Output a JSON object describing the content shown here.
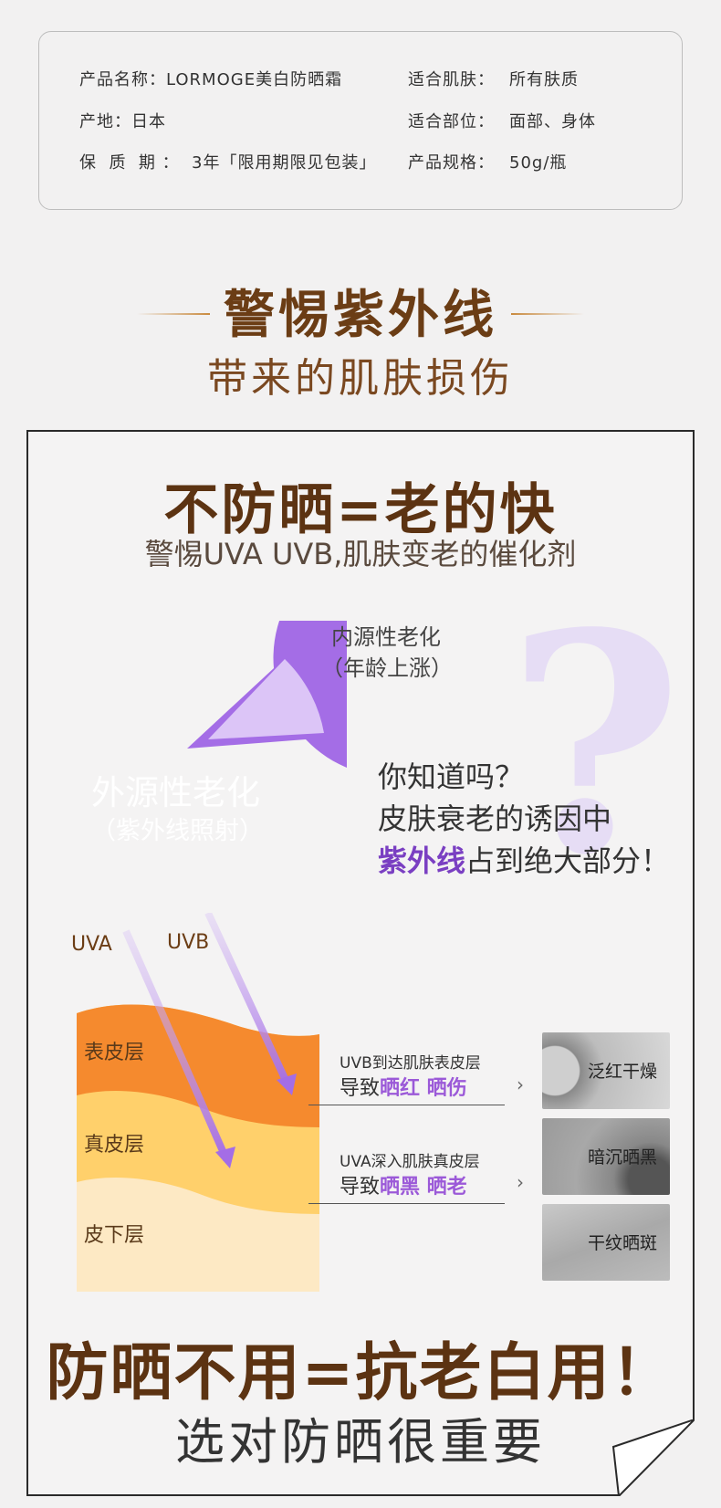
{
  "specs": {
    "name": "产品名称：LORMOGE美白防晒霜",
    "origin": "产地：日本",
    "shelf_life": "保  质  期 ：  3年「限用期限见包装」",
    "skin_label": "适合肌肤：",
    "skin_value": "所有肤质",
    "area_label": "适合部位：",
    "area_value": "面部、身体",
    "size_label": "产品规格：",
    "size_value": "50g/瓶"
  },
  "section": {
    "title": "警惕紫外线",
    "subtitle": "带来的肌肤损伤"
  },
  "card": {
    "headline": "不防晒=老的快",
    "subheadline": "警惕UVA UVB,肌肤变老的催化剂",
    "pie": {
      "small_label_1": "内源性老化",
      "small_label_2": "（年龄上涨）",
      "big_label_1": "外源性老化",
      "big_label_2": "（紫外线照射）"
    },
    "question_mark": "?",
    "did_you_know": {
      "line1": "你知道吗？",
      "line2": "皮肤衰老的诱因中",
      "line3_highlight": "紫外线",
      "line3_rest": "占到绝大部分！"
    },
    "uv": {
      "uva": "UVA",
      "uvb": "UVB"
    },
    "layers": {
      "epidermis": "表皮层",
      "dermis": "真皮层",
      "subcutis": "皮下层"
    },
    "effects": [
      {
        "title": "UVB到达肌肤表皮层",
        "lead": "导致",
        "harm": "晒红  晒伤",
        "chevron": "›"
      },
      {
        "title": "UVA深入肌肤真皮层",
        "lead": "导致",
        "harm": "晒黑  晒老",
        "chevron": "›"
      }
    ],
    "thumbs": [
      "泛红干燥",
      "暗沉晒黑",
      "干纹晒斑"
    ],
    "bottom_headline": "防晒不用=抗老白用！",
    "bottom_sub": "选对防晒很重要"
  },
  "colors": {
    "brown": "#5c3312",
    "purple": "#a46de6",
    "light_purple": "#dcc5f7",
    "orange": "#f58a2e",
    "yellow": "#ffd06b",
    "cream": "#fde9c4"
  }
}
